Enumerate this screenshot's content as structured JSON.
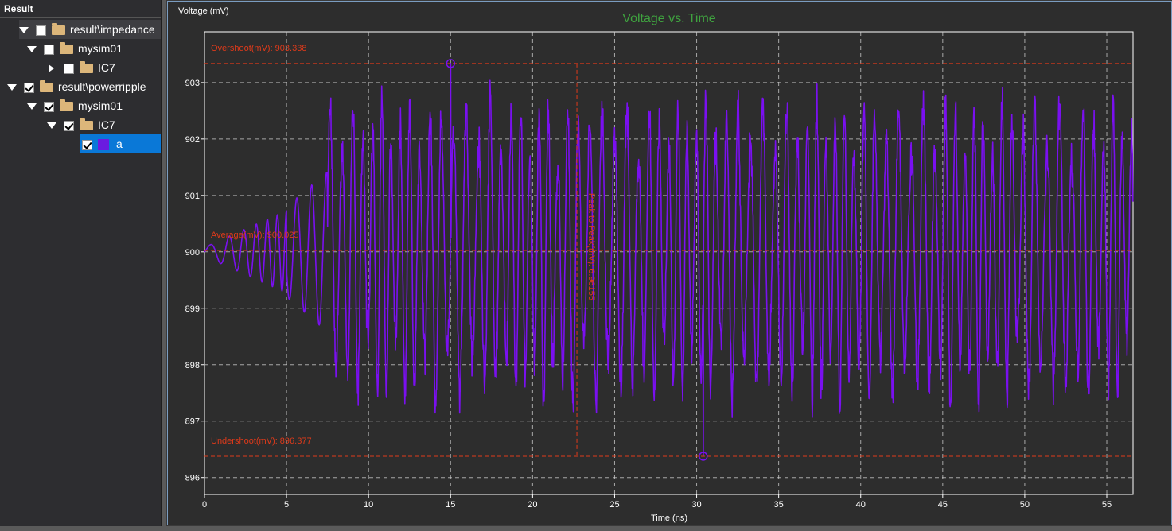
{
  "sidebar": {
    "header": "Result",
    "items": [
      {
        "label": "result\\impedance",
        "level": 0,
        "expanded": true,
        "checked": false,
        "type": "folder",
        "hover": true
      },
      {
        "label": "mysim01",
        "level": 1,
        "expanded": true,
        "checked": false,
        "type": "folder"
      },
      {
        "label": "IC7",
        "level": 2,
        "expanded": false,
        "checked": false,
        "type": "folder"
      },
      {
        "label": "result\\powerripple",
        "level": 0,
        "expanded": true,
        "checked": true,
        "type": "folder"
      },
      {
        "label": "mysim01",
        "level": 1,
        "expanded": true,
        "checked": true,
        "type": "folder"
      },
      {
        "label": "IC7",
        "level": 2,
        "expanded": true,
        "checked": true,
        "type": "folder"
      },
      {
        "label": "a",
        "level": 3,
        "checked": true,
        "type": "series",
        "selected": true,
        "color": "#6b1be0"
      }
    ]
  },
  "chart_data": {
    "type": "line",
    "title": "Voltage vs. Time",
    "xlabel": "Time (ns)",
    "ylabel": "Voltage (mV)",
    "xlim": [
      0,
      56.6
    ],
    "ylim": [
      895.7,
      903.9
    ],
    "xticks": [
      0,
      5,
      10,
      15,
      20,
      25,
      30,
      35,
      40,
      45,
      50,
      55
    ],
    "yticks": [
      896,
      897,
      898,
      899,
      900,
      901,
      902,
      903
    ],
    "grid": true,
    "series": [
      {
        "name": "a",
        "color": "#7a10f0",
        "description": "oscillating power ripple around 900 mV"
      }
    ],
    "annotations": {
      "overshoot": {
        "label": "Overshoot(mV): 903.338",
        "value": 903.338
      },
      "average": {
        "label": "Average(mV): 900.025",
        "value": 900.025
      },
      "undershoot": {
        "label": "Undershoot(mV): 896.377",
        "value": 896.377
      },
      "peak_to_peak": {
        "label": "Peak to Peak(mV): 6.96155",
        "value": 6.96155,
        "x": 22.7
      },
      "overshoot_point": {
        "x": 15.0,
        "y": 903.338
      },
      "undershoot_point": {
        "x": 30.4,
        "y": 896.377
      }
    },
    "colors": {
      "annotation": "#e03a1a",
      "grid": "#d0d0d0",
      "title": "#3fa33f"
    }
  }
}
